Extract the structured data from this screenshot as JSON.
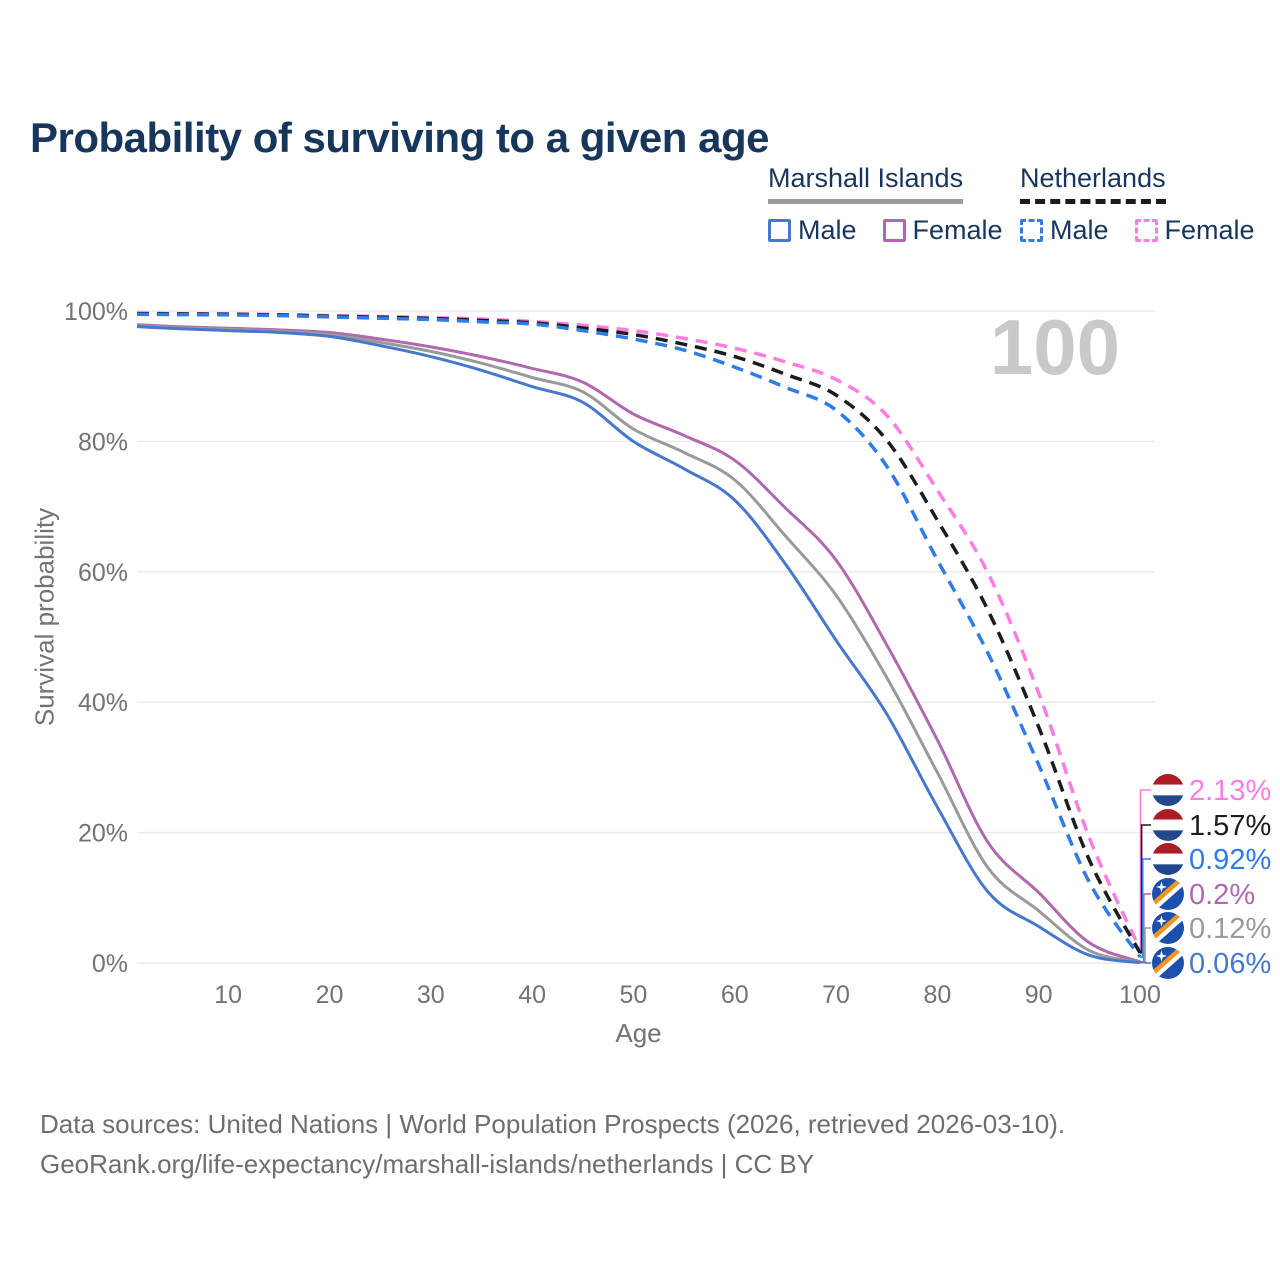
{
  "title": "Probability of surviving to a given age",
  "watermark": "100",
  "legend": {
    "groups": [
      {
        "label": "Marshall Islands",
        "line_style": "solid",
        "underline_color": "#9a9a9a",
        "items": [
          {
            "label": "Male",
            "color": "#4678cd"
          },
          {
            "label": "Female",
            "color": "#b168ae"
          }
        ]
      },
      {
        "label": "Netherlands",
        "line_style": "dashed",
        "underline_color": "#1c1c1c",
        "items": [
          {
            "label": "Male",
            "color": "#2e7ce8"
          },
          {
            "label": "Female",
            "color": "#ff7ce0"
          }
        ]
      }
    ]
  },
  "chart_data": {
    "type": "line",
    "title": "Probability of surviving to a given age",
    "xlabel": "Age",
    "ylabel": "Survival probability",
    "xlim": [
      1,
      100
    ],
    "ylim": [
      0,
      100
    ],
    "grid": true,
    "x_ticks": [
      10,
      20,
      30,
      40,
      50,
      60,
      70,
      80,
      90,
      100
    ],
    "y_ticks": [
      {
        "v": 0,
        "label": "0%"
      },
      {
        "v": 20,
        "label": "20%"
      },
      {
        "v": 40,
        "label": "40%"
      },
      {
        "v": 60,
        "label": "60%"
      },
      {
        "v": 80,
        "label": "80%"
      },
      {
        "v": 100,
        "label": "100%"
      }
    ],
    "x": [
      1,
      5,
      10,
      15,
      20,
      25,
      30,
      35,
      40,
      45,
      50,
      55,
      60,
      65,
      70,
      75,
      80,
      85,
      90,
      95,
      100
    ],
    "series": [
      {
        "name": "Netherlands Female",
        "country": "Netherlands",
        "flag": "nl",
        "dashed": true,
        "color": "#ff7ce0",
        "end_label": "2.13%",
        "values": [
          99.7,
          99.6,
          99.55,
          99.45,
          99.3,
          99.15,
          99.0,
          98.75,
          98.4,
          97.8,
          97.0,
          95.8,
          94.3,
          92.2,
          89.5,
          84.0,
          72.5,
          59.8,
          41.4,
          19.2,
          2.13
        ]
      },
      {
        "name": "Netherlands (both sexes)",
        "country": "Netherlands",
        "flag": "nl",
        "dashed": true,
        "color": "#1c1c1c",
        "end_label": "1.57%",
        "values": [
          99.6,
          99.55,
          99.5,
          99.4,
          99.2,
          99.05,
          98.85,
          98.55,
          98.2,
          97.4,
          96.4,
          94.9,
          93.0,
          90.3,
          87.1,
          80.2,
          67.9,
          54.1,
          36.2,
          15.8,
          1.57
        ]
      },
      {
        "name": "Netherlands Male",
        "country": "Netherlands",
        "flag": "nl",
        "dashed": true,
        "color": "#2e7ce8",
        "end_label": "0.92%",
        "values": [
          99.5,
          99.45,
          99.4,
          99.3,
          99.1,
          98.9,
          98.7,
          98.35,
          98.0,
          97.0,
          95.7,
          94.0,
          91.4,
          88.3,
          84.8,
          76.2,
          61.8,
          47.5,
          30.4,
          12.4,
          0.92
        ]
      },
      {
        "name": "Marshall Islands Female",
        "country": "Marshall Islands",
        "flag": "mh",
        "dashed": false,
        "color": "#b168ae",
        "end_label": "0.2%",
        "values": [
          97.9,
          97.6,
          97.35,
          97.1,
          96.7,
          95.7,
          94.5,
          93.0,
          91.2,
          89.1,
          84.2,
          80.9,
          77.1,
          69.8,
          61.8,
          48.8,
          34.2,
          18.5,
          10.8,
          3.1,
          0.2
        ]
      },
      {
        "name": "Marshall Islands (both sexes)",
        "country": "Marshall Islands",
        "flag": "mh",
        "dashed": false,
        "color": "#9a9a9a",
        "end_label": "0.12%",
        "values": [
          97.75,
          97.45,
          97.2,
          96.9,
          96.4,
          95.2,
          93.8,
          92.0,
          89.8,
          87.6,
          81.9,
          78.3,
          74.1,
          65.5,
          56.4,
          43.8,
          29.2,
          14.6,
          8.0,
          1.9,
          0.12
        ]
      },
      {
        "name": "Marshall Islands Male",
        "country": "Marshall Islands",
        "flag": "mh",
        "dashed": false,
        "color": "#4678cd",
        "end_label": "0.06%",
        "values": [
          97.6,
          97.3,
          97.0,
          96.7,
          96.1,
          94.7,
          93.0,
          90.9,
          88.4,
          86.0,
          80.0,
          75.8,
          71.0,
          61.2,
          49.5,
          38.2,
          23.9,
          10.9,
          5.6,
          1.2,
          0.06
        ]
      }
    ],
    "colors": {
      "grid": "#ebebeb",
      "tick_text": "#737373",
      "watermark": "#c9c9c9",
      "nl_flag": {
        "red": "#AE1C28",
        "white": "#ffffff",
        "blue": "#21468B"
      },
      "mh_flag": {
        "blue": "#1d4fae",
        "orange": "#f49517",
        "white": "#ffffff"
      }
    }
  },
  "footer": {
    "line1": "Data sources: United Nations | World Population Prospects (2026, retrieved 2026-03-10).",
    "line2": "GeoRank.org/life-expectancy/marshall-islands/netherlands | CC BY"
  }
}
